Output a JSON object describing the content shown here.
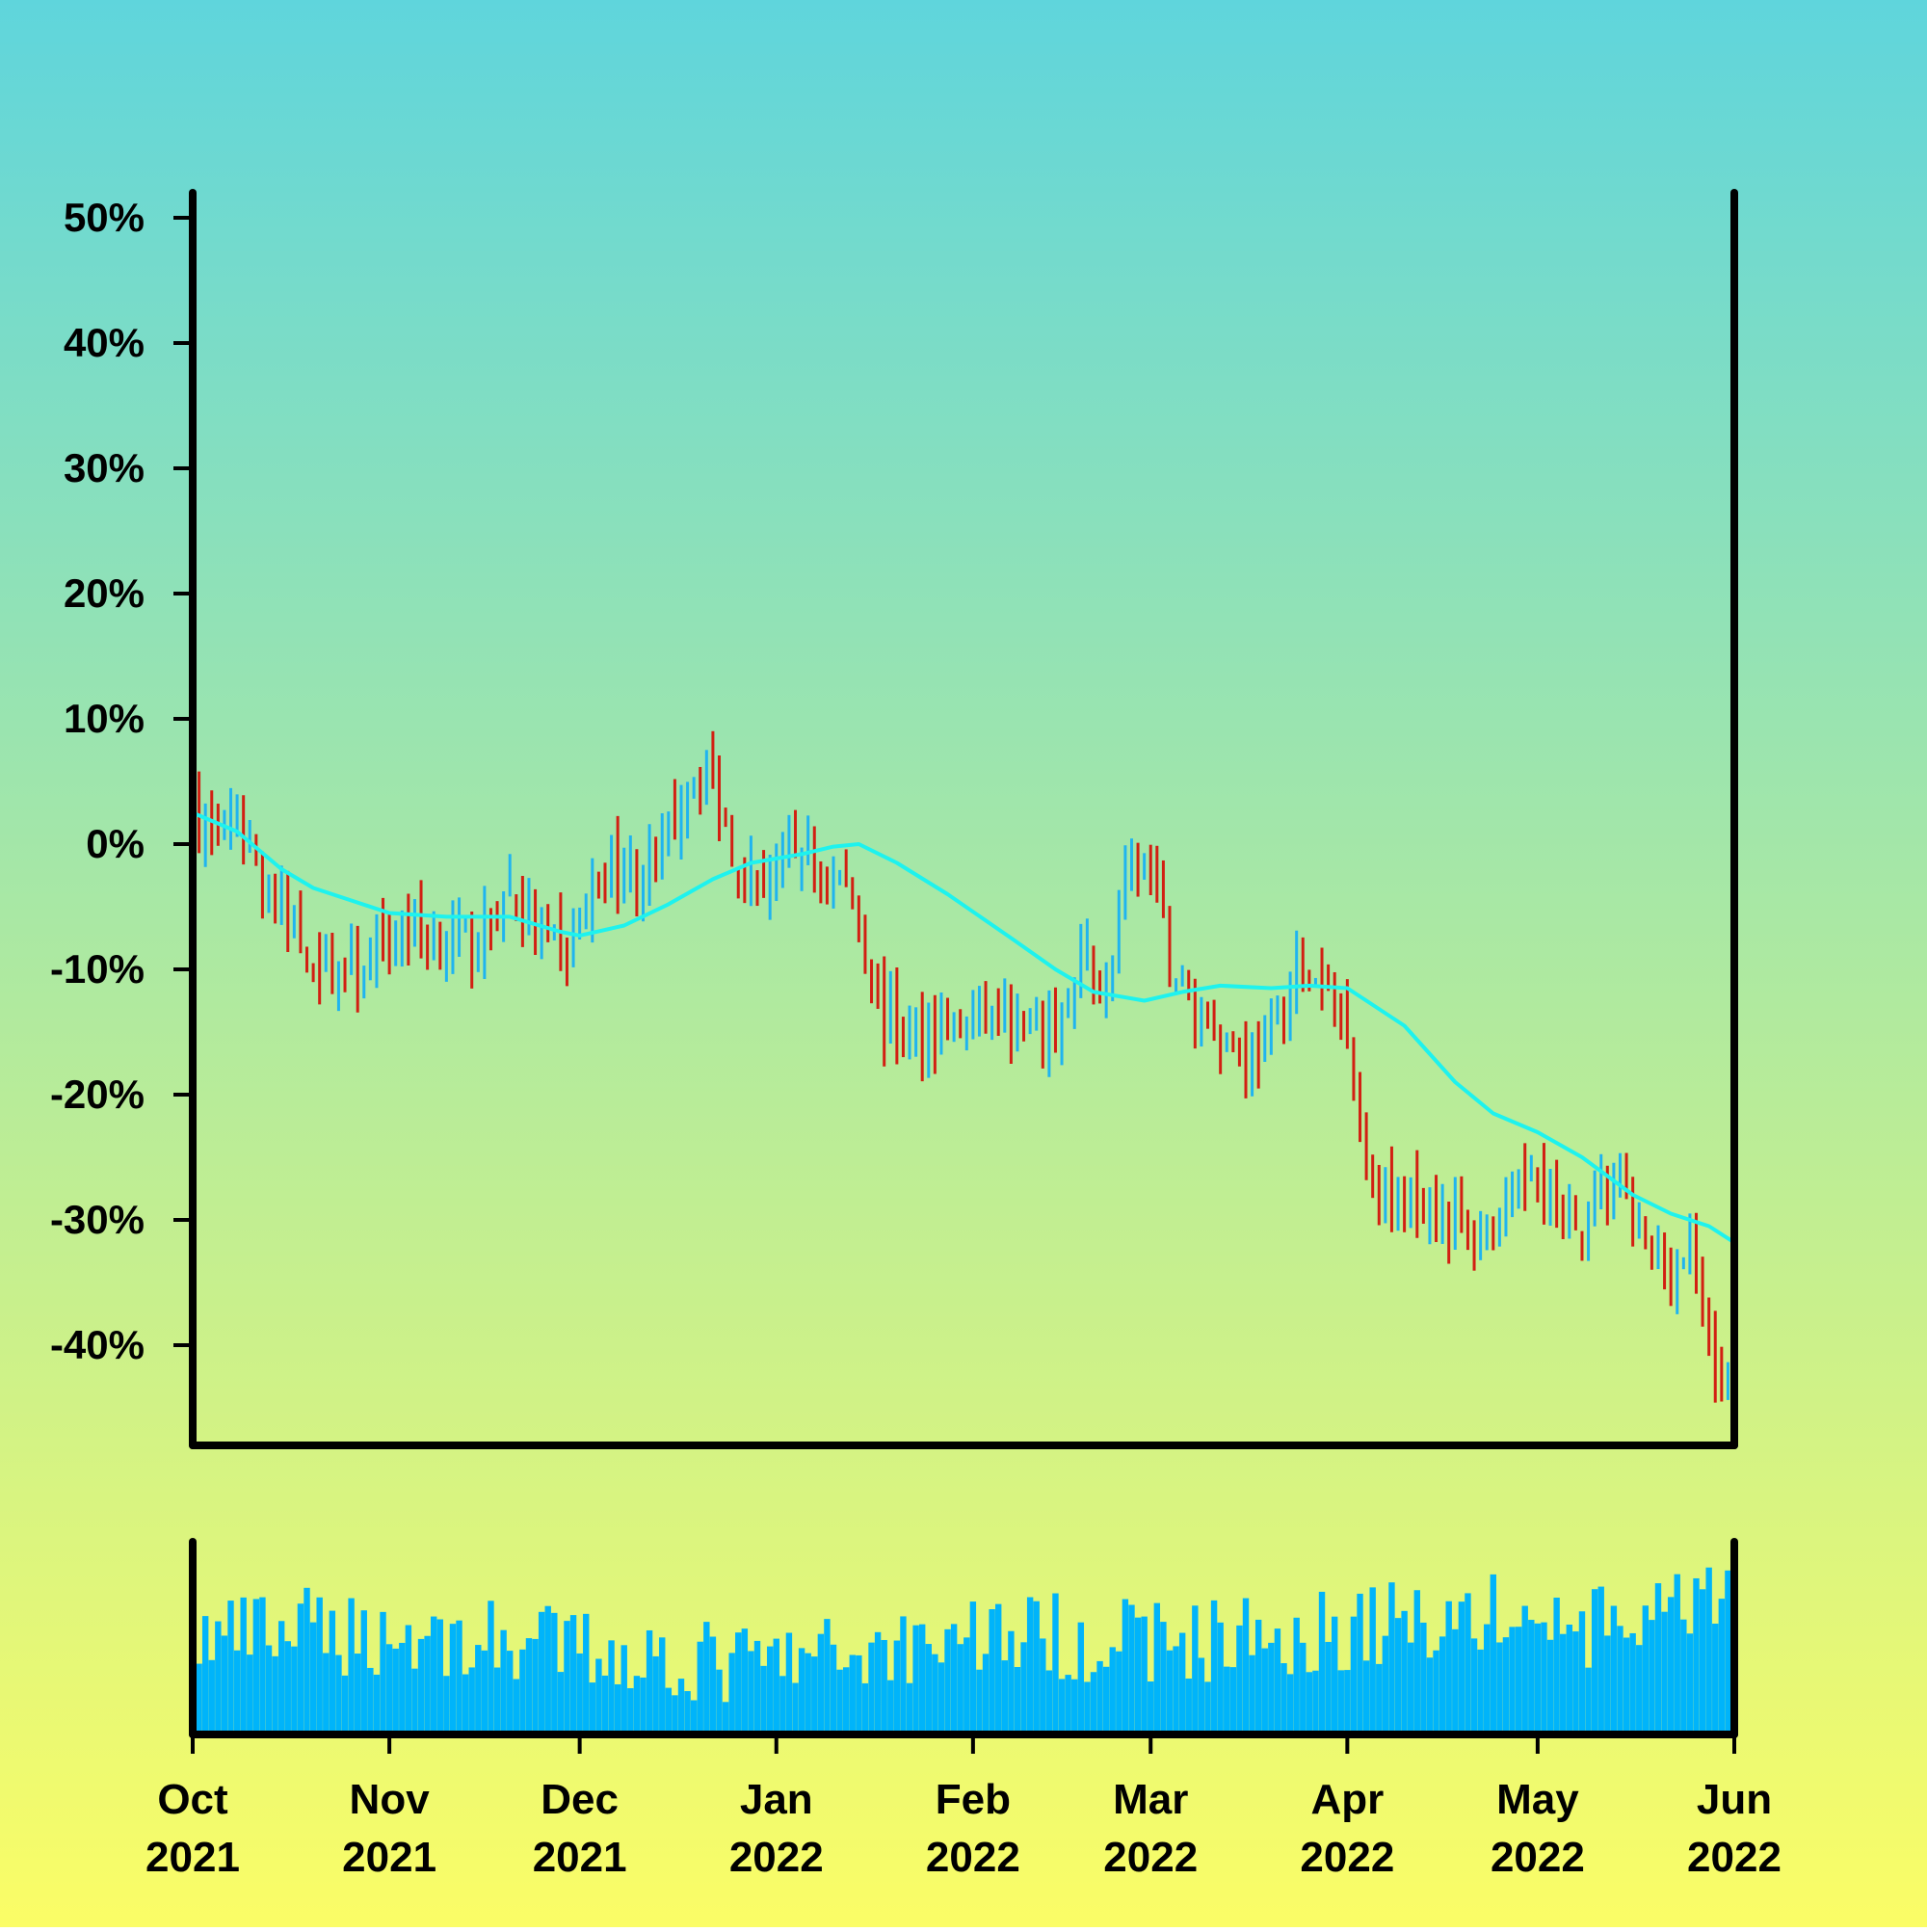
{
  "chart_data": {
    "type": "ohlc",
    "xlabel": "",
    "ylabel": "",
    "y_unit": "%",
    "x_range": [
      "2021-10-01",
      "2022-06-01"
    ],
    "ylim": [
      -48,
      52
    ],
    "grid": false,
    "legend": "none",
    "y_ticks": [
      50,
      40,
      30,
      20,
      10,
      0,
      -10,
      -20,
      -30,
      -40
    ],
    "y_tick_labels": [
      "50%",
      "40%",
      "30%",
      "20%",
      "10%",
      "0%",
      "-10%",
      "-20%",
      "-30%",
      "-40%"
    ],
    "x_ticks": [
      {
        "date": "2021-10-01",
        "month": "Oct",
        "year": "2021"
      },
      {
        "date": "2021-11-01",
        "month": "Nov",
        "year": "2021"
      },
      {
        "date": "2021-12-01",
        "month": "Dec",
        "year": "2021"
      },
      {
        "date": "2022-01-01",
        "month": "Jan",
        "year": "2022"
      },
      {
        "date": "2022-02-01",
        "month": "Feb",
        "year": "2022"
      },
      {
        "date": "2022-03-01",
        "month": "Mar",
        "year": "2022"
      },
      {
        "date": "2022-04-01",
        "month": "Apr",
        "year": "2022"
      },
      {
        "date": "2022-05-01",
        "month": "May",
        "year": "2022"
      },
      {
        "date": "2022-06-01",
        "month": "Jun",
        "year": "2022"
      }
    ],
    "close_path": [
      [
        "2021-10-02",
        2.0
      ],
      [
        "2021-10-05",
        0.5
      ],
      [
        "2021-10-08",
        1.5
      ],
      [
        "2021-10-12",
        -2.5
      ],
      [
        "2021-10-15",
        -5.5
      ],
      [
        "2021-10-18",
        -8.0
      ],
      [
        "2021-10-22",
        -9.5
      ],
      [
        "2021-10-27",
        -10.5
      ],
      [
        "2021-10-31",
        -8.5
      ],
      [
        "2021-11-04",
        -6.0
      ],
      [
        "2021-11-08",
        -7.5
      ],
      [
        "2021-11-12",
        -8.0
      ],
      [
        "2021-11-16",
        -7.0
      ],
      [
        "2021-11-20",
        -3.5
      ],
      [
        "2021-11-24",
        -7.0
      ],
      [
        "2021-11-28",
        -9.0
      ],
      [
        "2021-12-02",
        -5.0
      ],
      [
        "2021-12-06",
        -1.5
      ],
      [
        "2021-12-10",
        -2.5
      ],
      [
        "2021-12-14",
        -1.0
      ],
      [
        "2021-12-18",
        5.0
      ],
      [
        "2021-12-21",
        6.5
      ],
      [
        "2021-12-24",
        1.5
      ],
      [
        "2021-12-28",
        -3.0
      ],
      [
        "2022-01-01",
        -2.0
      ],
      [
        "2022-01-05",
        -0.5
      ],
      [
        "2022-01-08",
        -2.5
      ],
      [
        "2022-01-12",
        -3.0
      ],
      [
        "2022-01-15",
        -8.0
      ],
      [
        "2022-01-18",
        -14.0
      ],
      [
        "2022-01-22",
        -16.0
      ],
      [
        "2022-01-26",
        -14.0
      ],
      [
        "2022-01-30",
        -15.0
      ],
      [
        "2022-02-03",
        -14.0
      ],
      [
        "2022-02-07",
        -15.0
      ],
      [
        "2022-02-11",
        -16.0
      ],
      [
        "2022-02-15",
        -14.0
      ],
      [
        "2022-02-19",
        -9.0
      ],
      [
        "2022-02-22",
        -12.0
      ],
      [
        "2022-02-24",
        -6.0
      ],
      [
        "2022-02-27",
        -1.0
      ],
      [
        "2022-03-01",
        -2.0
      ],
      [
        "2022-03-04",
        -9.0
      ],
      [
        "2022-03-08",
        -13.0
      ],
      [
        "2022-03-12",
        -15.0
      ],
      [
        "2022-03-16",
        -17.0
      ],
      [
        "2022-03-20",
        -16.0
      ],
      [
        "2022-03-24",
        -10.0
      ],
      [
        "2022-03-28",
        -12.0
      ],
      [
        "2022-04-01",
        -14.0
      ],
      [
        "2022-04-04",
        -25.0
      ],
      [
        "2022-04-08",
        -29.0
      ],
      [
        "2022-04-12",
        -28.0
      ],
      [
        "2022-04-16",
        -29.0
      ],
      [
        "2022-04-20",
        -31.0
      ],
      [
        "2022-04-24",
        -30.0
      ],
      [
        "2022-04-28",
        -28.0
      ],
      [
        "2022-05-01",
        -25.0
      ],
      [
        "2022-05-05",
        -31.0
      ],
      [
        "2022-05-09",
        -30.0
      ],
      [
        "2022-05-13",
        -26.0
      ],
      [
        "2022-05-17",
        -32.0
      ],
      [
        "2022-05-21",
        -34.0
      ],
      [
        "2022-05-25",
        -33.0
      ],
      [
        "2022-05-28",
        -40.0
      ],
      [
        "2022-05-31",
        -44.0
      ]
    ],
    "moving_average": {
      "color": "#1ef2ee",
      "points": [
        [
          "2021-10-01",
          2.5
        ],
        [
          "2021-10-08",
          1.0
        ],
        [
          "2021-10-15",
          -2.0
        ],
        [
          "2021-10-20",
          -3.5
        ],
        [
          "2021-10-26",
          -4.5
        ],
        [
          "2021-11-01",
          -5.5
        ],
        [
          "2021-11-10",
          -5.8
        ],
        [
          "2021-11-20",
          -5.8
        ],
        [
          "2021-11-28",
          -7.0
        ],
        [
          "2021-12-01",
          -7.3
        ],
        [
          "2021-12-08",
          -6.5
        ],
        [
          "2021-12-15",
          -4.8
        ],
        [
          "2021-12-22",
          -2.8
        ],
        [
          "2021-12-28",
          -1.5
        ],
        [
          "2022-01-05",
          -0.8
        ],
        [
          "2022-01-10",
          -0.2
        ],
        [
          "2022-01-14",
          0.0
        ],
        [
          "2022-01-20",
          -1.5
        ],
        [
          "2022-01-28",
          -4.0
        ],
        [
          "2022-02-07",
          -7.5
        ],
        [
          "2022-02-14",
          -10.0
        ],
        [
          "2022-02-20",
          -11.8
        ],
        [
          "2022-02-28",
          -12.5
        ],
        [
          "2022-03-06",
          -11.8
        ],
        [
          "2022-03-12",
          -11.3
        ],
        [
          "2022-03-20",
          -11.5
        ],
        [
          "2022-03-26",
          -11.3
        ],
        [
          "2022-04-01",
          -11.5
        ],
        [
          "2022-04-10",
          -14.5
        ],
        [
          "2022-04-18",
          -19.0
        ],
        [
          "2022-04-24",
          -21.5
        ],
        [
          "2022-05-01",
          -23.0
        ],
        [
          "2022-05-08",
          -25.0
        ],
        [
          "2022-05-16",
          -28.0
        ],
        [
          "2022-05-22",
          -29.5
        ],
        [
          "2022-05-28",
          -30.5
        ],
        [
          "2022-06-01",
          -31.8
        ]
      ]
    },
    "up_color": "#1fb4f0",
    "down_color": "#d21f12",
    "volume": {
      "color": "#00b4fa",
      "ylim": [
        0,
        1
      ],
      "shape": [
        [
          "2021-10-01",
          0.55
        ],
        [
          "2021-10-20",
          0.6
        ],
        [
          "2021-11-10",
          0.55
        ],
        [
          "2021-12-01",
          0.5
        ],
        [
          "2021-12-25",
          0.4
        ],
        [
          "2022-01-10",
          0.45
        ],
        [
          "2022-02-01",
          0.6
        ],
        [
          "2022-02-20",
          0.55
        ],
        [
          "2022-03-10",
          0.55
        ],
        [
          "2022-03-28",
          0.6
        ],
        [
          "2022-04-20",
          0.7
        ],
        [
          "2022-05-10",
          0.6
        ],
        [
          "2022-06-01",
          0.75
        ]
      ]
    }
  }
}
